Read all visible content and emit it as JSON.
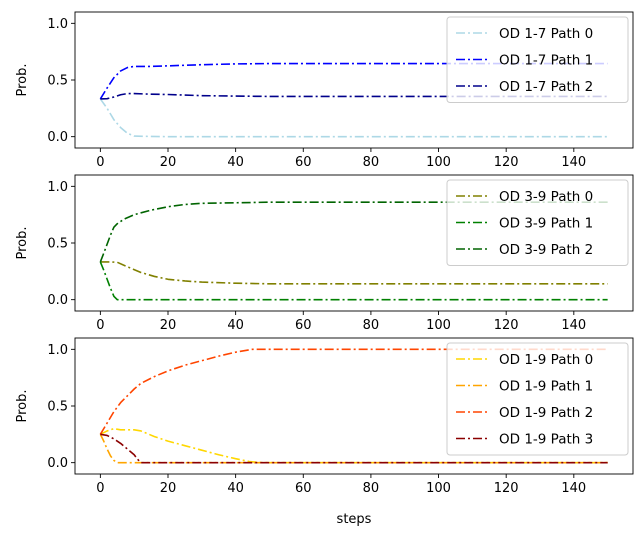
{
  "chart_data": [
    {
      "type": "line",
      "ylabel": "Prob.",
      "xlabel": "",
      "xlim": [
        -7.5,
        157.5
      ],
      "ylim": [
        -0.1,
        1.1
      ],
      "xticks": [
        0,
        20,
        40,
        60,
        80,
        100,
        120,
        140
      ],
      "yticks": [
        0.0,
        0.5,
        1.0
      ],
      "legend_position": "top-right",
      "series": [
        {
          "name": "OD 1-7 Path 0",
          "color": "#add8e6",
          "x": [
            0,
            2,
            4,
            6,
            8,
            10,
            15,
            20,
            150
          ],
          "y": [
            0.333,
            0.25,
            0.15,
            0.08,
            0.03,
            0.005,
            0.002,
            0.0,
            0.0
          ]
        },
        {
          "name": "OD 1-7 Path 1",
          "color": "#0000ff",
          "x": [
            0,
            2,
            4,
            6,
            8,
            10,
            15,
            20,
            30,
            40,
            50,
            60,
            150
          ],
          "y": [
            0.333,
            0.43,
            0.52,
            0.58,
            0.61,
            0.62,
            0.62,
            0.625,
            0.635,
            0.642,
            0.645,
            0.645,
            0.645
          ]
        },
        {
          "name": "OD 1-7 Path 2",
          "color": "#00008b",
          "x": [
            0,
            2,
            4,
            6,
            8,
            10,
            15,
            20,
            30,
            40,
            50,
            60,
            150
          ],
          "y": [
            0.333,
            0.335,
            0.35,
            0.37,
            0.38,
            0.38,
            0.375,
            0.372,
            0.362,
            0.358,
            0.355,
            0.355,
            0.355
          ]
        }
      ]
    },
    {
      "type": "line",
      "ylabel": "Prob.",
      "xlabel": "",
      "xlim": [
        -7.5,
        157.5
      ],
      "ylim": [
        -0.1,
        1.1
      ],
      "xticks": [
        0,
        20,
        40,
        60,
        80,
        100,
        120,
        140
      ],
      "yticks": [
        0.0,
        0.5,
        1.0
      ],
      "legend_position": "top-right",
      "series": [
        {
          "name": "OD 3-9 Path 0",
          "color": "#808000",
          "x": [
            0,
            3,
            5,
            8,
            12,
            16,
            20,
            25,
            30,
            40,
            50,
            150
          ],
          "y": [
            0.333,
            0.333,
            0.33,
            0.29,
            0.24,
            0.205,
            0.18,
            0.165,
            0.155,
            0.145,
            0.14,
            0.14
          ]
        },
        {
          "name": "OD 3-9 Path 1",
          "color": "#008000",
          "x": [
            0,
            1,
            2,
            3,
            4,
            5,
            6,
            150
          ],
          "y": [
            0.333,
            0.26,
            0.18,
            0.1,
            0.03,
            0.0,
            0.0,
            0.0
          ]
        },
        {
          "name": "OD 3-9 Path 2",
          "color": "#006400",
          "x": [
            0,
            1,
            2,
            3,
            4,
            5,
            7,
            10,
            15,
            20,
            25,
            30,
            40,
            50,
            150
          ],
          "y": [
            0.333,
            0.41,
            0.49,
            0.57,
            0.64,
            0.67,
            0.71,
            0.75,
            0.79,
            0.82,
            0.84,
            0.85,
            0.855,
            0.86,
            0.86
          ]
        }
      ]
    },
    {
      "type": "line",
      "ylabel": "Prob.",
      "xlabel": "steps",
      "xlim": [
        -7.5,
        157.5
      ],
      "ylim": [
        -0.1,
        1.1
      ],
      "xticks": [
        0,
        20,
        40,
        60,
        80,
        100,
        120,
        140
      ],
      "yticks": [
        0.0,
        0.5,
        1.0
      ],
      "legend_position": "top-right",
      "series": [
        {
          "name": "OD 1-9 Path 0",
          "color": "#ffd700",
          "x": [
            0,
            2,
            4,
            6,
            8,
            10,
            12,
            16,
            20,
            25,
            30,
            35,
            40,
            44,
            48,
            150
          ],
          "y": [
            0.25,
            0.28,
            0.3,
            0.29,
            0.29,
            0.29,
            0.28,
            0.23,
            0.19,
            0.15,
            0.11,
            0.07,
            0.035,
            0.01,
            0.0,
            0.0
          ]
        },
        {
          "name": "OD 1-9 Path 1",
          "color": "#ffa500",
          "x": [
            0,
            1,
            2,
            3,
            4,
            5,
            6,
            150
          ],
          "y": [
            0.25,
            0.19,
            0.12,
            0.06,
            0.02,
            0.0,
            0.0,
            0.0
          ]
        },
        {
          "name": "OD 1-9 Path 2",
          "color": "#ff4500",
          "x": [
            0,
            2,
            4,
            6,
            8,
            10,
            12,
            16,
            20,
            25,
            30,
            35,
            40,
            45,
            50,
            150
          ],
          "y": [
            0.25,
            0.35,
            0.45,
            0.53,
            0.59,
            0.65,
            0.7,
            0.76,
            0.81,
            0.86,
            0.9,
            0.94,
            0.975,
            1.0,
            1.0,
            1.0
          ]
        },
        {
          "name": "OD 1-9 Path 3",
          "color": "#8b0000",
          "x": [
            0,
            2,
            4,
            6,
            8,
            10,
            11,
            12,
            150
          ],
          "y": [
            0.25,
            0.24,
            0.21,
            0.17,
            0.12,
            0.07,
            0.03,
            0.0,
            0.0
          ]
        }
      ]
    }
  ]
}
